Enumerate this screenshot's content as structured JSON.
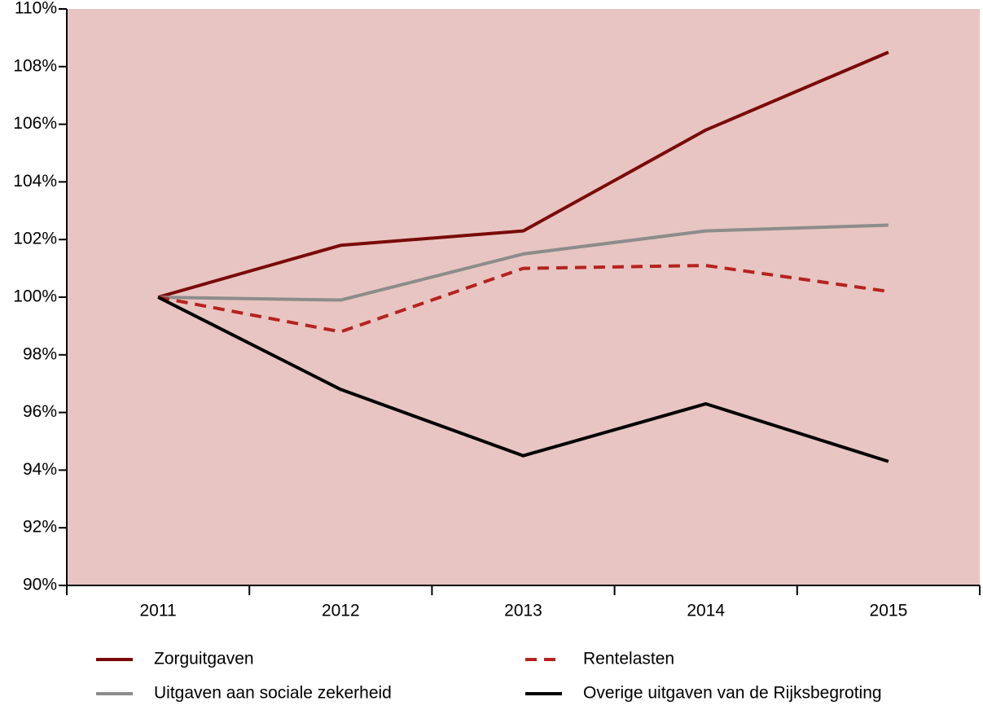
{
  "chart_data": {
    "type": "line",
    "categories": [
      "2011",
      "2012",
      "2013",
      "2014",
      "2015"
    ],
    "series": [
      {
        "name": "Zorguitgaven",
        "color": "#7a0a0a",
        "dash": false,
        "values": [
          100,
          101.8,
          102.3,
          105.8,
          108.5
        ]
      },
      {
        "name": "Uitgaven aan sociale zekerheid",
        "color": "#8c8c8c",
        "dash": false,
        "values": [
          100,
          99.9,
          101.5,
          102.3,
          102.5
        ]
      },
      {
        "name": "Rentelasten",
        "color": "#b5231f",
        "dash": true,
        "values": [
          100,
          98.8,
          101.0,
          101.1,
          100.2
        ]
      },
      {
        "name": "Overige uitgaven van de Rijksbegroting",
        "color": "#000000",
        "dash": false,
        "values": [
          100,
          96.8,
          94.5,
          96.3,
          94.3
        ]
      }
    ],
    "ylim": [
      90,
      110
    ],
    "yticks": [
      {
        "value": 90,
        "label": "90%"
      },
      {
        "value": 92,
        "label": "92%"
      },
      {
        "value": 94,
        "label": "94%"
      },
      {
        "value": 96,
        "label": "96%"
      },
      {
        "value": 98,
        "label": "98%"
      },
      {
        "value": 100,
        "label": "100%"
      },
      {
        "value": 102,
        "label": "102%"
      },
      {
        "value": 104,
        "label": "104%"
      },
      {
        "value": 106,
        "label": "106%"
      },
      {
        "value": 108,
        "label": "108%"
      },
      {
        "value": 110,
        "label": "110%"
      }
    ],
    "background": "#e8c5c2",
    "legend": "bottom"
  }
}
